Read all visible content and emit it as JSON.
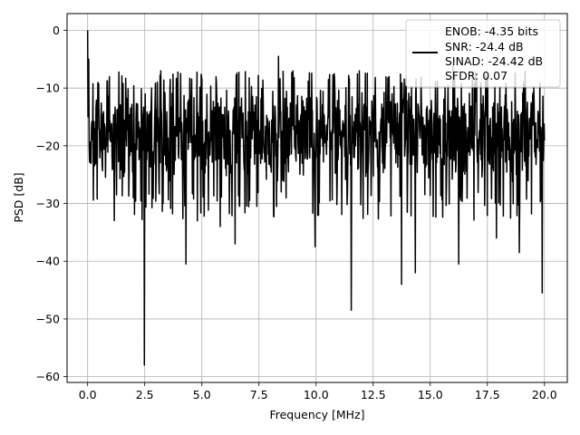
{
  "chart_data": {
    "type": "line",
    "xlabel": "Frequency [MHz]",
    "ylabel": "PSD [dB]",
    "xlim": [
      -0.9,
      21.0
    ],
    "ylim": [
      -61.0,
      2.9
    ],
    "xticks": [
      0.0,
      2.5,
      5.0,
      7.5,
      10.0,
      12.5,
      15.0,
      17.5,
      20.0
    ],
    "xtick_labels": [
      "0.0",
      "2.5",
      "5.0",
      "7.5",
      "10.0",
      "12.5",
      "15.0",
      "17.5",
      "20.0"
    ],
    "yticks": [
      0,
      -10,
      -20,
      -30,
      -40,
      -50,
      -60
    ],
    "ytick_labels": [
      "0",
      "−10",
      "−20",
      "−30",
      "−40",
      "−50",
      "−60"
    ],
    "grid": true,
    "legend_position": "upper right",
    "line_color": "#000000",
    "legend": [
      "ENOB: -4.35 bits",
      "SNR: -24.4 dB",
      "SINAD: -24.42 dB",
      "SFDR: 0.07"
    ],
    "series": [
      {
        "x_range": [
          0.0,
          20.0
        ],
        "num_points": 1200,
        "baseline_db": -18,
        "envelope_db": [
          -12,
          -28
        ],
        "peak_db": 0.0,
        "peak_x": 0.0,
        "notable_dips": [
          {
            "x": 0.15,
            "y": -23
          },
          {
            "x": 2.0,
            "y": -29
          },
          {
            "x": 2.48,
            "y": -58
          },
          {
            "x": 3.3,
            "y": -30
          },
          {
            "x": 4.3,
            "y": -40.5
          },
          {
            "x": 4.8,
            "y": -33
          },
          {
            "x": 5.8,
            "y": -34
          },
          {
            "x": 6.45,
            "y": -37
          },
          {
            "x": 9.95,
            "y": -37.5
          },
          {
            "x": 11.55,
            "y": -48.5
          },
          {
            "x": 13.75,
            "y": -44
          },
          {
            "x": 14.35,
            "y": -42
          },
          {
            "x": 16.25,
            "y": -40.5
          },
          {
            "x": 17.9,
            "y": -36
          },
          {
            "x": 18.9,
            "y": -38.5
          },
          {
            "x": 19.9,
            "y": -45.5
          }
        ],
        "notable_peaks": [
          {
            "x": 0.05,
            "y": -5
          },
          {
            "x": 3.2,
            "y": -7
          },
          {
            "x": 8.35,
            "y": -4.5
          },
          {
            "x": 10.8,
            "y": -7.5
          },
          {
            "x": 11.9,
            "y": -7
          },
          {
            "x": 13.2,
            "y": -8
          },
          {
            "x": 16.0,
            "y": -6
          }
        ]
      }
    ]
  }
}
